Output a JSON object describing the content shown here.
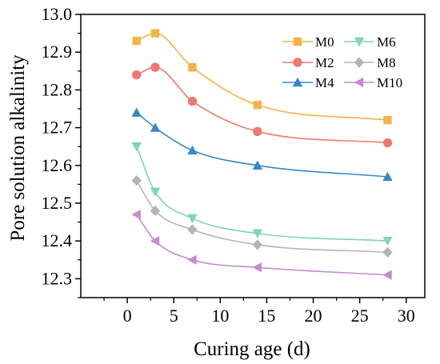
{
  "chart_data": {
    "type": "line",
    "title": "",
    "xlabel": "Curing age (d)",
    "ylabel": "Pore solution alkalinity",
    "xlim": [
      -5,
      32
    ],
    "ylim": [
      12.25,
      13.0
    ],
    "xticks": [
      0,
      5,
      10,
      15,
      20,
      25,
      30
    ],
    "yticks": [
      12.3,
      12.4,
      12.5,
      12.6,
      12.7,
      12.8,
      12.9,
      13.0
    ],
    "xtick_labels": [
      "0",
      "5",
      "10",
      "15",
      "20",
      "25",
      "30"
    ],
    "ytick_labels": [
      "12.3",
      "12.4",
      "12.5",
      "12.6",
      "12.7",
      "12.8",
      "12.9",
      "13.0"
    ],
    "x": [
      1,
      3,
      7,
      14,
      28
    ],
    "grid": false,
    "legend_position": "top-right",
    "series": [
      {
        "name": "M0",
        "values": [
          12.93,
          12.95,
          12.86,
          12.76,
          12.72
        ],
        "color": "#f5b24a",
        "marker": "square"
      },
      {
        "name": "M6",
        "values": [
          12.65,
          12.53,
          12.46,
          12.42,
          12.4
        ],
        "color": "#7fd6b0",
        "marker": "triangle-down"
      },
      {
        "name": "M2",
        "values": [
          12.84,
          12.86,
          12.77,
          12.69,
          12.66
        ],
        "color": "#ee7872",
        "marker": "circle"
      },
      {
        "name": "M8",
        "values": [
          12.56,
          12.48,
          12.43,
          12.39,
          12.37
        ],
        "color": "#b5b5b5",
        "marker": "diamond"
      },
      {
        "name": "M4",
        "values": [
          12.74,
          12.7,
          12.64,
          12.6,
          12.57
        ],
        "color": "#3a86c6",
        "marker": "triangle-up"
      },
      {
        "name": "M10",
        "values": [
          12.47,
          12.4,
          12.35,
          12.33,
          12.31
        ],
        "color": "#c38ccc",
        "marker": "triangle-left"
      }
    ]
  }
}
